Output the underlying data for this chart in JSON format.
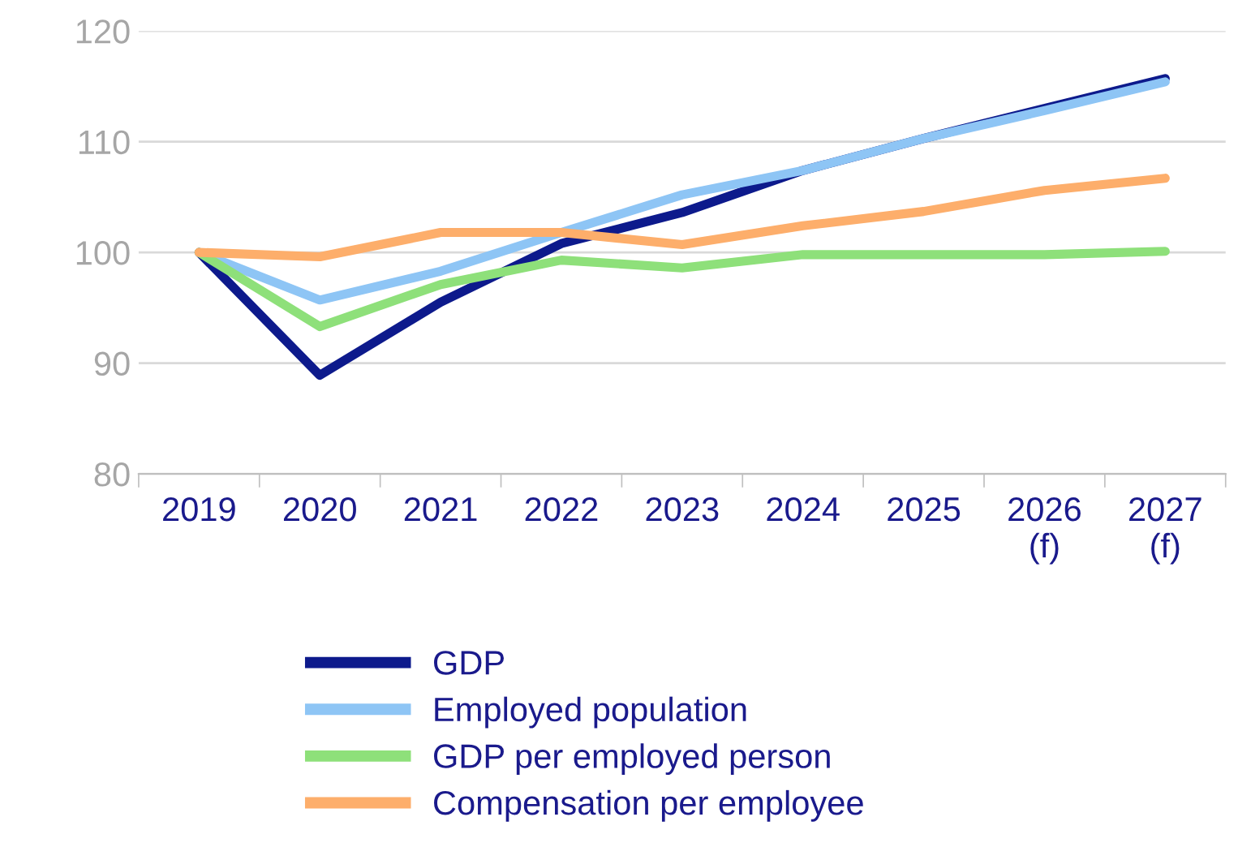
{
  "chart_data": {
    "type": "line",
    "categories": [
      "2019",
      "2020",
      "2021",
      "2022",
      "2023",
      "2024",
      "2025",
      "2026\n(f)",
      "2027\n(f)"
    ],
    "series": [
      {
        "name": "GDP",
        "color": "#0d1a8c",
        "values": [
          100,
          88.9,
          95.5,
          100.8,
          103.6,
          107.4,
          110.3,
          113,
          115.7
        ]
      },
      {
        "name": "Employed population",
        "color": "#8ec5f5",
        "values": [
          100,
          95.7,
          98.3,
          101.8,
          105.2,
          107.4,
          110.3,
          112.8,
          115.4
        ]
      },
      {
        "name": "GDP per employed person",
        "color": "#8ee07a",
        "values": [
          100,
          93.3,
          97.1,
          99.3,
          98.6,
          99.8,
          99.8,
          99.8,
          100.1
        ]
      },
      {
        "name": "Compensation per employee",
        "color": "#fdae6b",
        "values": [
          100,
          99.6,
          101.8,
          101.8,
          100.7,
          102.4,
          103.7,
          105.6,
          106.7
        ]
      }
    ],
    "ylim": [
      80,
      120
    ],
    "yticks": [
      80,
      90,
      100,
      110,
      120
    ],
    "grid": "y",
    "legend": "bottom",
    "marker": "none",
    "line_style": "solid"
  }
}
